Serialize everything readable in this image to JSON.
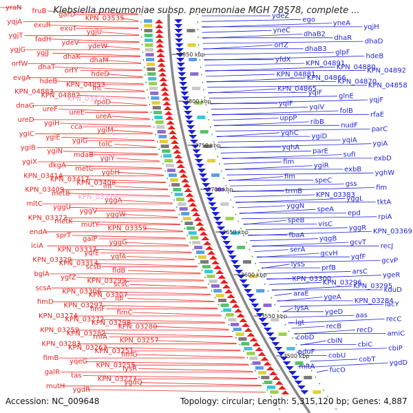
{
  "title": "Klebsiella pneumoniae subsp. pneumoniae MGH 78578, complete ...",
  "footer": {
    "accession": "Accession: NC_009648",
    "summary": "Topology: circular; Length: 5,315,120 bp; Genes: 4,887"
  },
  "colors": {
    "left_strand": "#e8201e",
    "right_strand": "#1a1fd6",
    "left_highlight": "#f4a0c8",
    "backbone": "#888888"
  },
  "ticks": [
    "3850 kbp",
    "3800 kbp",
    "3750 kbp",
    "3700 kbp",
    "3650 kbp",
    "3600 kbp",
    "3550 kbp",
    "3500 kbp"
  ],
  "left_labels": [
    "yraN",
    "fruB",
    "garD",
    "KPN_03535",
    "yqjA",
    "exuR",
    "exuT",
    "ygjU",
    "ygjT",
    "fadH",
    "ydeV",
    "ydeW",
    "ygjG",
    "ygjJ",
    "dhaK",
    "dhaM",
    "orfW",
    "dhaT",
    "orfY",
    "hdeD",
    "evgA",
    "hdeB",
    "KPN_04893",
    "int",
    "KPN_04883",
    "KPN_04882",
    "KPN_03476",
    "rpoD",
    "dnaG",
    "ureF",
    "ureE",
    "ureA",
    "ureD",
    "ygiH",
    "cca",
    "ygiM",
    "ygiC",
    "ygiE",
    "ygiG",
    "tolC",
    "ygiB",
    "ygiN",
    "mdaB",
    "ygiY",
    "ygiX",
    "dkgA",
    "metC",
    "ygbH",
    "KPN_03414",
    "KPN_03417",
    "KPN_03408",
    "int",
    "KPN_03409",
    "metB",
    "KPN_03399",
    "yggA",
    "mltC",
    "yggU",
    "yggV",
    "yggW",
    "KPN_03372",
    "metK",
    "mutY",
    "KPN_03359",
    "endA",
    "sprT",
    "galP",
    "yggG",
    "iciA",
    "KPN_03337",
    "yqfE",
    "yqfA",
    "KPN_03329",
    "KPN_03314",
    "scsB",
    "fldB",
    "bglA",
    "ygfZ",
    "KPN_03299",
    "scsC",
    "scsA",
    "KPN_03306",
    "KPN_03307",
    "idi",
    "fimD",
    "KPN_03297",
    "fimF",
    "fimC",
    "KPN_03274",
    "KPN_03272",
    "KPN_03298",
    "KPN_03280",
    "KPN_03259",
    "KPN_03282",
    "rnfA",
    "KPN_03257",
    "KPN_03283",
    "KPN_03263",
    "KPN_03251",
    "fimG",
    "fimB",
    "yqeG",
    "KPN_03255",
    "lysR",
    "galR",
    "tas",
    "KPN_03227",
    "ygdQ",
    "mutH",
    "ygdR"
  ],
  "right_labels": [
    "ydeZ",
    "ego",
    "yneA",
    "yqjH",
    "yneC",
    "dhaB2",
    "dhaR",
    "dhaD",
    "orfZ",
    "dhaB3",
    "glpF",
    "hdeB",
    "yfdX",
    "KPN_04891",
    "KPN_04880",
    "KPN_04892",
    "KPN_04881",
    "KPN_04866",
    "KPN_04870",
    "KPN_04858",
    "KPN_04865",
    "yqiF",
    "glnE",
    "yqjF",
    "yqiF",
    "yqiV",
    "folB",
    "rfaE",
    "uppP",
    "ribB",
    "nudF",
    "parC",
    "yqhC",
    "ygiD",
    "yqiA",
    "ygiA",
    "yqhA",
    "parE",
    "sufI",
    "exbD",
    "fim",
    "ygiR",
    "exbB",
    "yghW",
    "fim",
    "speC",
    "gss",
    "fim",
    "trmB",
    "KPN_03383",
    "yggL",
    "tktA",
    "yggN",
    "speA",
    "epd",
    "rpiA",
    "speB",
    "visC",
    "yggR",
    "KPN_03369",
    "fbaA",
    "yqgB",
    "gcvT",
    "recJ",
    "serA",
    "gcvH",
    "yqfF",
    "gcvP",
    "lysS",
    "prfB",
    "arsC",
    "ygeR",
    "KPN_03300",
    "KPN_03296",
    "KPN_03295",
    "kduD",
    "araE",
    "ygeA",
    "KPN_03284",
    "lacY",
    "lysA",
    "ygeD",
    "aas",
    "recC",
    "lgt",
    "recB",
    "recD",
    "amiC",
    "cobD",
    "cbiN",
    "cbiC",
    "cbiP",
    "pduF",
    "cobU",
    "cobT",
    "ygdD",
    "mltA",
    "fucO"
  ]
}
